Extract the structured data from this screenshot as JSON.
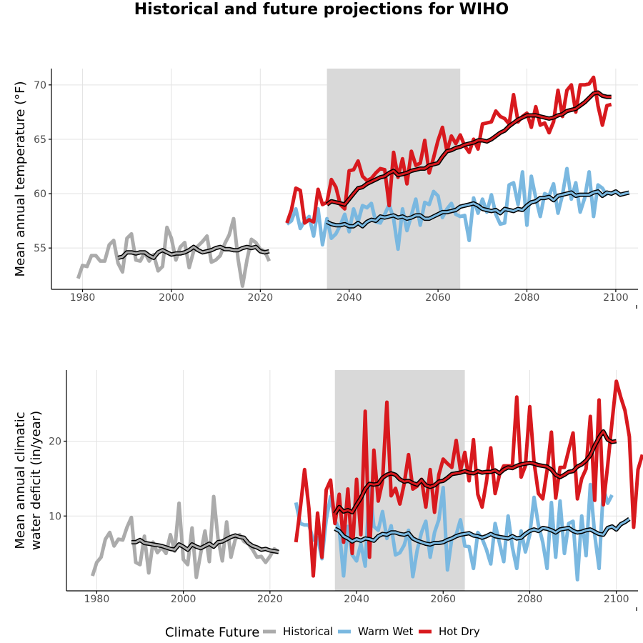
{
  "title": "Historical and future projections for WIHO",
  "colors": {
    "historical": "#ababab",
    "warm_wet": "#7ab8e0",
    "hot_dry": "#d8191e",
    "smooth": "#000000",
    "period_shade": "#d9d9d9"
  },
  "legend": {
    "title": "Climate Future",
    "items": [
      {
        "label": "Historical",
        "color_key": "historical"
      },
      {
        "label": "Warm Wet",
        "color_key": "warm_wet"
      },
      {
        "label": "Hot Dry",
        "color_key": "hot_dry"
      }
    ]
  },
  "chart_data": [
    {
      "type": "line",
      "ylabel": "Mean annual temperature (°F)",
      "xlim": [
        1973,
        2105
      ],
      "ylim": [
        51.2,
        71.5
      ],
      "xticks": [
        1980,
        2000,
        2020,
        2040,
        2060,
        2080,
        2100
      ],
      "yticks": [
        55,
        60,
        65,
        70
      ],
      "grid": true,
      "shaded_period": [
        2035,
        2065
      ],
      "series": [
        {
          "name": "Historical",
          "color_key": "historical",
          "x_start": 1979,
          "values": [
            52.2,
            53.4,
            53.3,
            54.3,
            54.3,
            53.8,
            53.8,
            55.3,
            55.7,
            53.6,
            52.8,
            55.9,
            56.3,
            53.9,
            53.8,
            54.6,
            53.8,
            54.4,
            52.9,
            53.3,
            56.9,
            55.9,
            53.9,
            55.1,
            55.5,
            53.2,
            54.7,
            55.2,
            55.6,
            56.1,
            53.7,
            53.9,
            54.3,
            55.4,
            56.2,
            57.7,
            54.0,
            51.5,
            53.9,
            55.8,
            55.5,
            54.9,
            54.7,
            53.8
          ]
        },
        {
          "name": "Historical smoothed",
          "color_key": "smooth",
          "smooth": true,
          "x_start": 1988,
          "values": [
            54.1,
            54.2,
            54.6,
            54.6,
            54.5,
            54.6,
            54.6,
            54.3,
            54.1,
            54.6,
            54.8,
            54.6,
            54.4,
            54.5,
            54.5,
            54.6,
            54.8,
            55.1,
            54.8,
            54.6,
            54.7,
            54.8,
            55.0,
            55.1,
            54.9,
            54.9,
            54.8,
            54.8,
            55.0,
            55.1,
            55.0,
            55.1,
            54.7,
            54.6,
            54.7
          ]
        },
        {
          "name": "Warm Wet",
          "color_key": "warm_wet",
          "x_start": 2026,
          "values": [
            57.2,
            57.5,
            58.6,
            56.8,
            57.5,
            57.9,
            56.1,
            58.6,
            55.3,
            57.7,
            55.9,
            56.3,
            57.1,
            58.1,
            56.5,
            58.6,
            57.4,
            58.9,
            58.7,
            59.1,
            57.4,
            57.3,
            58.1,
            59.0,
            57.7,
            54.9,
            58.6,
            56.6,
            58.0,
            59.5,
            57.1,
            59.2,
            59.0,
            60.2,
            59.8,
            57.8,
            58.6,
            59.1,
            58.1,
            57.9,
            58.0,
            55.7,
            59.6,
            58.2,
            59.5,
            58.3,
            59.9,
            58.1,
            57.2,
            57.3,
            60.8,
            61.0,
            59.0,
            62.0,
            57.1,
            61.6,
            59.6,
            57.9,
            60.0,
            59.8,
            60.9,
            58.2,
            59.9,
            62.3,
            59.5,
            61.0,
            58.3,
            59.6,
            62.0,
            57.9,
            60.8,
            60.5,
            59.8
          ]
        },
        {
          "name": "Warm Wet smoothed",
          "color_key": "smooth",
          "smooth": true,
          "x_start": 2035,
          "values": [
            57.4,
            57.2,
            57.1,
            57.1,
            57.2,
            57.0,
            57.0,
            57.3,
            57.0,
            57.4,
            57.6,
            57.5,
            57.9,
            57.8,
            57.9,
            58.0,
            57.8,
            57.9,
            57.7,
            57.8,
            58.0,
            58.0,
            57.7,
            57.7,
            57.9,
            58.1,
            58.3,
            58.3,
            58.4,
            58.5,
            58.8,
            58.9,
            59.0,
            59.1,
            58.9,
            58.6,
            58.5,
            58.4,
            58.5,
            58.2,
            58.6,
            58.5,
            58.4,
            58.6,
            58.5,
            58.9,
            59.2,
            59.3,
            59.6,
            59.6,
            59.7,
            59.4,
            59.8,
            59.9,
            60.0,
            60.1,
            59.8,
            59.9,
            59.9,
            59.9,
            60.1,
            60.2,
            59.8,
            60.1,
            60.0,
            60.2,
            59.9,
            60.0,
            60.1
          ]
        },
        {
          "name": "Hot Dry",
          "color_key": "hot_dry",
          "x_start": 2026,
          "values": [
            57.3,
            58.5,
            60.5,
            60.3,
            57.3,
            57.6,
            57.4,
            60.4,
            59.0,
            59.2,
            61.3,
            60.6,
            59.0,
            58.6,
            62.1,
            62.2,
            63.0,
            61.6,
            61.2,
            61.4,
            61.9,
            62.3,
            62.2,
            58.9,
            63.8,
            61.5,
            63.2,
            60.9,
            63.9,
            62.6,
            62.8,
            64.9,
            61.9,
            63.3,
            64.9,
            66.1,
            63.9,
            65.3,
            64.6,
            65.4,
            64.4,
            63.8,
            65.0,
            64.1,
            66.4,
            66.5,
            66.6,
            67.6,
            67.1,
            66.9,
            66.4,
            69.1,
            66.6,
            67.1,
            67.4,
            66.1,
            68.0,
            66.3,
            66.5,
            65.6,
            66.6,
            69.5,
            67.1,
            69.5,
            70.0,
            67.5,
            70.0,
            70.0,
            70.1,
            70.7,
            68.1,
            66.3,
            68.1,
            68.2
          ]
        },
        {
          "name": "Hot Dry smoothed",
          "color_key": "smooth",
          "smooth": true,
          "x_start": 2035,
          "values": [
            59.0,
            59.3,
            59.2,
            59.1,
            59.0,
            59.5,
            60.0,
            60.5,
            60.6,
            60.9,
            61.1,
            61.3,
            61.5,
            61.6,
            61.9,
            62.1,
            61.7,
            61.8,
            61.9,
            62.1,
            62.2,
            62.3,
            62.3,
            62.6,
            62.7,
            62.8,
            63.4,
            63.9,
            64.0,
            64.2,
            64.3,
            64.5,
            64.6,
            64.7,
            64.9,
            64.9,
            64.8,
            65.0,
            65.3,
            65.6,
            65.8,
            66.2,
            66.5,
            66.8,
            67.0,
            67.2,
            67.2,
            67.2,
            67.1,
            67.0,
            66.9,
            67.0,
            67.2,
            67.3,
            67.6,
            67.7,
            67.8,
            68.1,
            68.4,
            68.8,
            69.2,
            69.3,
            69.0,
            68.9,
            68.9
          ]
        }
      ]
    },
    {
      "type": "line",
      "ylabel": "Mean annual climatic water deficit (in/year)",
      "ylabel_lines": [
        "Mean annual climatic",
        "water deficit (in/year)"
      ],
      "xlim": [
        1973,
        2105
      ],
      "ylim": [
        0,
        29.5
      ],
      "xticks": [
        1980,
        2000,
        2020,
        2040,
        2060,
        2080,
        2100
      ],
      "yticks": [
        10,
        20
      ],
      "grid": true,
      "shaded_period": [
        2035,
        2065
      ],
      "series": [
        {
          "name": "Historical",
          "color_key": "historical",
          "x_start": 1979,
          "values": [
            2.0,
            3.8,
            4.5,
            6.9,
            7.8,
            6.0,
            6.9,
            6.8,
            8.5,
            9.8,
            3.8,
            3.5,
            7.3,
            2.4,
            6.5,
            5.1,
            5.8,
            5.0,
            7.5,
            5.3,
            11.7,
            4.2,
            3.5,
            8.4,
            1.8,
            5.0,
            8.0,
            3.9,
            12.6,
            7.0,
            4.0,
            9.2,
            4.5,
            6.9,
            7.5,
            6.6,
            6.3,
            5.5,
            4.5,
            4.6,
            3.8,
            4.6,
            5.6,
            5.2
          ]
        },
        {
          "name": "Historical smoothed",
          "color_key": "smooth",
          "smooth": true,
          "x_start": 1988,
          "values": [
            6.5,
            6.5,
            6.8,
            6.4,
            6.3,
            6.2,
            6.1,
            6.0,
            5.8,
            5.6,
            5.5,
            6.2,
            5.9,
            5.5,
            6.2,
            5.9,
            5.7,
            6.0,
            6.3,
            5.9,
            6.5,
            6.6,
            6.9,
            7.2,
            7.4,
            7.2,
            7.1,
            6.4,
            6.0,
            5.8,
            5.5,
            5.6,
            5.4,
            5.3,
            5.2
          ]
        },
        {
          "name": "Warm Wet",
          "color_key": "warm_wet",
          "x_start": 2026,
          "values": [
            11.8,
            9.0,
            8.8,
            8.8,
            6.8,
            7.1,
            4.3,
            9.5,
            12.6,
            9.4,
            8.3,
            2.0,
            8.6,
            4.8,
            4.0,
            6.3,
            3.3,
            14.0,
            8.6,
            8.1,
            10.6,
            7.0,
            8.7,
            4.8,
            5.1,
            6.1,
            8.1,
            1.9,
            5.4,
            7.8,
            9.3,
            4.5,
            7.8,
            9.5,
            13.8,
            2.8,
            7.0,
            7.5,
            9.5,
            6.0,
            5.9,
            3.0,
            7.8,
            7.0,
            5.5,
            3.6,
            9.0,
            6.4,
            3.9,
            10.0,
            5.8,
            3.0,
            8.0,
            5.2,
            7.5,
            12.5,
            8.8,
            6.5,
            3.0,
            11.8,
            4.5,
            12.0,
            5.0,
            9.0,
            9.3,
            1.5,
            10.0,
            4.7,
            14.2,
            7.5,
            3.0,
            13.7,
            11.7,
            12.8
          ]
        },
        {
          "name": "Warm Wet smoothed",
          "color_key": "smooth",
          "smooth": true,
          "x_start": 2035,
          "values": [
            8.3,
            8.0,
            7.3,
            7.0,
            6.6,
            6.9,
            6.7,
            7.0,
            6.9,
            6.7,
            7.3,
            7.6,
            7.5,
            7.8,
            7.8,
            7.6,
            7.5,
            7.7,
            7.0,
            6.7,
            6.5,
            6.3,
            6.2,
            6.4,
            6.4,
            6.5,
            6.8,
            7.0,
            7.3,
            7.5,
            7.6,
            7.7,
            7.4,
            7.3,
            7.1,
            7.3,
            7.6,
            7.3,
            7.2,
            7.1,
            7.0,
            7.3,
            7.0,
            7.1,
            7.6,
            8.0,
            8.2,
            8.0,
            8.4,
            8.3,
            8.1,
            7.8,
            8.2,
            8.3,
            8.4,
            8.0,
            7.8,
            7.9,
            8.1,
            8.2,
            7.9,
            7.6,
            7.5,
            8.4,
            8.6,
            8.2,
            8.9,
            9.2,
            9.6
          ]
        },
        {
          "name": "Hot Dry",
          "color_key": "hot_dry",
          "x_start": 2026,
          "values": [
            6.5,
            11.0,
            16.2,
            11.0,
            2.0,
            10.4,
            4.5,
            13.5,
            14.8,
            9.0,
            12.9,
            6.5,
            13.6,
            5.0,
            14.9,
            7.5,
            24.0,
            4.5,
            18.8,
            12.0,
            14.6,
            25.2,
            12.7,
            13.7,
            11.6,
            14.3,
            18.2,
            13.6,
            14.0,
            14.9,
            11.2,
            16.2,
            10.5,
            15.5,
            17.6,
            17.0,
            16.5,
            20.1,
            16.1,
            18.5,
            14.7,
            20.2,
            12.9,
            11.2,
            14.6,
            19.1,
            13.0,
            15.5,
            16.7,
            16.7,
            16.7,
            25.9,
            15.2,
            16.7,
            24.6,
            17.2,
            13.0,
            12.3,
            16.1,
            21.2,
            12.4,
            16.5,
            16.5,
            18.8,
            21.1,
            12.3,
            15.0,
            16.3,
            23.3,
            12.1,
            25.5,
            11.5,
            16.8,
            22.5,
            28.0,
            25.9,
            24.1,
            20.6,
            8.5,
            16.2,
            18.2
          ]
        },
        {
          "name": "Hot Dry smoothed",
          "color_key": "smooth",
          "smooth": true,
          "x_start": 2035,
          "values": [
            10.3,
            11.2,
            10.6,
            10.8,
            10.5,
            11.5,
            12.4,
            13.6,
            14.3,
            14.2,
            14.3,
            15.1,
            15.5,
            15.7,
            15.5,
            14.9,
            14.6,
            14.7,
            14.4,
            14.2,
            14.8,
            14.1,
            13.9,
            14.1,
            14.6,
            14.7,
            15.1,
            15.6,
            15.7,
            15.8,
            16.0,
            15.8,
            15.7,
            16.0,
            15.8,
            15.9,
            15.9,
            16.1,
            15.7,
            16.2,
            16.5,
            16.4,
            16.7,
            16.9,
            17.0,
            17.1,
            17.0,
            16.8,
            16.7,
            16.6,
            16.2,
            15.5,
            15.2,
            15.5,
            15.9,
            16.0,
            16.6,
            16.9,
            17.4,
            18.1,
            19.4,
            20.5,
            21.3,
            20.2,
            19.9,
            20.0
          ]
        }
      ]
    }
  ]
}
